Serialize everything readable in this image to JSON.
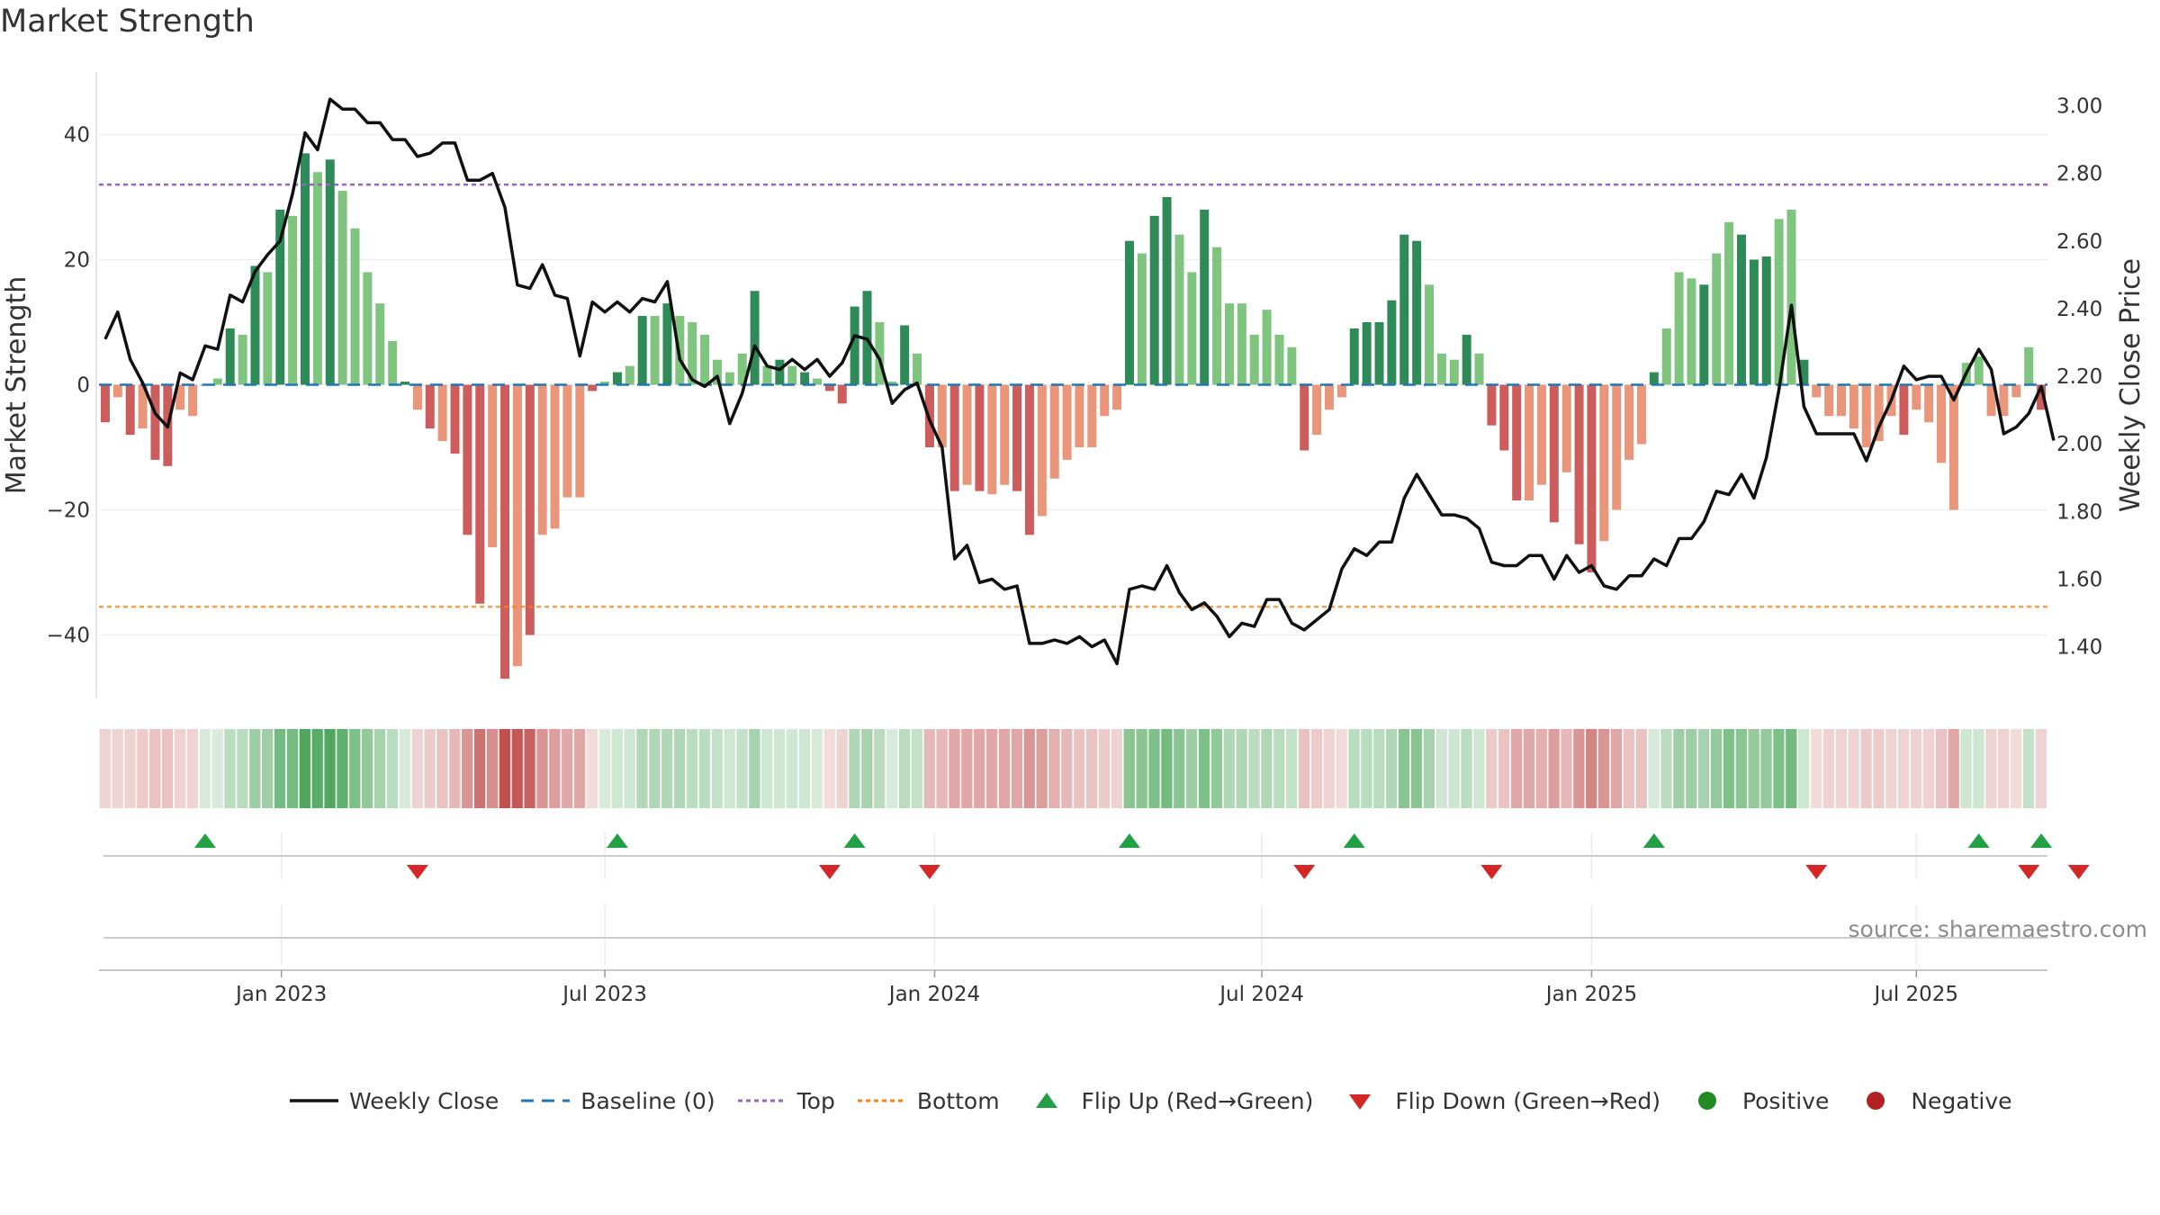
{
  "title": "Market Strength",
  "source": "source: sharemaestro.com",
  "colors": {
    "dark_green": "#2e8b57",
    "light_green": "#7fc47f",
    "dark_red": "#cd5c5c",
    "light_red": "#e9967a",
    "price_line": "#111111",
    "baseline": "#1f77b4",
    "top_line": "#9467bd",
    "bottom_line": "#ff7f0e",
    "flip_up": "#22a045",
    "flip_down": "#d62728",
    "positive": "#228b22",
    "negative": "#b22222"
  },
  "legend": [
    {
      "label": "Weekly Close",
      "kind": "line-solid",
      "color": "#111111"
    },
    {
      "label": "Baseline (0)",
      "kind": "line-dash",
      "color": "#1f77b4"
    },
    {
      "label": "Top",
      "kind": "line-dot",
      "color": "#9467bd"
    },
    {
      "label": "Bottom",
      "kind": "line-dot",
      "color": "#ff7f0e"
    },
    {
      "label": "Flip Up (Red→Green)",
      "kind": "tri-up",
      "color": "#22a045"
    },
    {
      "label": "Flip Down (Green→Red)",
      "kind": "tri-down",
      "color": "#d62728"
    },
    {
      "label": "Positive",
      "kind": "dot",
      "color": "#228b22"
    },
    {
      "label": "Negative",
      "kind": "dot",
      "color": "#b22222"
    }
  ],
  "chart_data": {
    "type": "bar",
    "ylabel": "Market Strength",
    "y2label": "Weekly Close Price",
    "ylim": [
      -50,
      50
    ],
    "y2lim": [
      1.25,
      3.1
    ],
    "yticks": [
      40,
      20,
      0,
      -20,
      -40
    ],
    "ytick_labels": [
      "40",
      "20",
      "0",
      "−20",
      "−40"
    ],
    "y2ticks": [
      3.0,
      2.8,
      2.6,
      2.4,
      2.2,
      2.0,
      1.8,
      1.6,
      1.4
    ],
    "y2tick_labels": [
      "3.00",
      "2.80",
      "2.60",
      "2.40",
      "2.20",
      "2.00",
      "1.80",
      "1.60",
      "1.40"
    ],
    "xticks": [
      {
        "label": "Jan 2023",
        "index": 14.1
      },
      {
        "label": "Jul 2023",
        "index": 40.0
      },
      {
        "label": "Jan 2024",
        "index": 66.4
      },
      {
        "label": "Jul 2024",
        "index": 92.6
      },
      {
        "label": "Jan 2025",
        "index": 119.0
      },
      {
        "label": "Jul 2025",
        "index": 145.0
      }
    ],
    "top_threshold": 32,
    "bottom_threshold": -35.5,
    "baseline": 0,
    "strength": [
      -6,
      -2,
      -8,
      -7,
      -12,
      -13,
      -4,
      -5,
      0,
      1,
      9,
      8,
      19,
      18,
      28,
      27,
      37,
      34,
      36,
      31,
      25,
      18,
      13,
      7,
      0.5,
      -4,
      -7,
      -9,
      -11,
      -24,
      -35,
      -26,
      -47,
      -45,
      -40,
      -24,
      -23,
      -18,
      -18,
      -1,
      0.5,
      2,
      3,
      11,
      11,
      13,
      11,
      10,
      8,
      4,
      2,
      5,
      15,
      3,
      4,
      3,
      2,
      1,
      -1,
      -3,
      12.5,
      15,
      10,
      0.5,
      9.5,
      5,
      -10,
      -10,
      -17,
      -16,
      -17,
      -17.5,
      -16,
      -17,
      -24,
      -21,
      -15,
      -12,
      -10,
      -10,
      -5,
      -4,
      23,
      21,
      27,
      30,
      24,
      18,
      28,
      22,
      13,
      13,
      8,
      12,
      8,
      6,
      -10.5,
      -8,
      -4,
      -2,
      9,
      10,
      10,
      13.5,
      24,
      23,
      16,
      5,
      4,
      8,
      5,
      -6.5,
      -10.5,
      -18.5,
      -18.5,
      -16,
      -22,
      -14,
      -25.5,
      -30,
      -25,
      -20,
      -12,
      -9.5,
      2,
      9,
      18,
      17,
      16,
      21,
      26,
      24,
      20,
      20.5,
      26.5,
      28,
      4,
      -2,
      -5,
      -5,
      -7,
      -10,
      -9,
      -5,
      -8,
      -4,
      -6,
      -12.5,
      -20,
      3.5,
      4.5,
      -5,
      -5,
      -2,
      6,
      -4
    ],
    "shade": [
      0,
      1,
      0,
      1,
      0,
      0,
      1,
      1,
      0,
      1,
      0,
      1,
      0,
      1,
      0,
      1,
      0,
      1,
      0,
      1,
      1,
      1,
      1,
      1,
      0,
      1,
      0,
      1,
      0,
      0,
      0,
      1,
      0,
      1,
      0,
      1,
      1,
      1,
      1,
      0,
      1,
      0,
      1,
      0,
      1,
      0,
      1,
      1,
      1,
      1,
      1,
      1,
      0,
      1,
      0,
      1,
      0,
      1,
      0,
      0,
      0,
      0,
      1,
      1,
      0,
      1,
      0,
      1,
      0,
      1,
      0,
      1,
      1,
      0,
      0,
      1,
      1,
      1,
      1,
      1,
      1,
      1,
      0,
      1,
      0,
      0,
      1,
      1,
      0,
      1,
      1,
      1,
      1,
      1,
      1,
      1,
      0,
      1,
      1,
      1,
      0,
      0,
      0,
      0,
      0,
      0,
      1,
      1,
      1,
      0,
      1,
      0,
      0,
      0,
      1,
      1,
      0,
      1,
      0,
      0,
      1,
      1,
      1,
      1,
      0,
      1,
      1,
      1,
      0,
      1,
      1,
      0,
      0,
      0,
      1,
      1,
      0,
      1,
      1,
      1,
      1,
      1,
      1,
      1,
      0,
      1,
      1,
      1,
      1,
      1,
      1,
      1,
      1,
      1,
      1,
      0,
      1,
      1,
      1,
      1
    ],
    "heat_intensity": [
      0.2,
      0.2,
      0.2,
      0.25,
      0.3,
      0.3,
      0.2,
      0.2,
      0.15,
      0.15,
      0.3,
      0.3,
      0.45,
      0.45,
      0.65,
      0.65,
      0.85,
      0.8,
      0.85,
      0.75,
      0.6,
      0.5,
      0.4,
      0.3,
      0.15,
      0.2,
      0.25,
      0.3,
      0.35,
      0.55,
      0.75,
      0.6,
      0.95,
      0.9,
      0.85,
      0.55,
      0.5,
      0.45,
      0.45,
      0.15,
      0.15,
      0.2,
      0.2,
      0.35,
      0.35,
      0.35,
      0.35,
      0.3,
      0.3,
      0.25,
      0.2,
      0.25,
      0.4,
      0.2,
      0.2,
      0.2,
      0.2,
      0.15,
      0.15,
      0.2,
      0.35,
      0.4,
      0.3,
      0.15,
      0.3,
      0.25,
      0.35,
      0.35,
      0.45,
      0.45,
      0.45,
      0.45,
      0.45,
      0.45,
      0.55,
      0.5,
      0.4,
      0.35,
      0.3,
      0.3,
      0.25,
      0.2,
      0.55,
      0.55,
      0.6,
      0.65,
      0.55,
      0.45,
      0.6,
      0.5,
      0.35,
      0.35,
      0.3,
      0.35,
      0.3,
      0.25,
      0.3,
      0.25,
      0.2,
      0.15,
      0.3,
      0.3,
      0.3,
      0.35,
      0.55,
      0.55,
      0.4,
      0.2,
      0.2,
      0.3,
      0.2,
      0.25,
      0.3,
      0.45,
      0.45,
      0.4,
      0.5,
      0.35,
      0.55,
      0.65,
      0.55,
      0.45,
      0.3,
      0.3,
      0.15,
      0.3,
      0.45,
      0.45,
      0.4,
      0.5,
      0.6,
      0.55,
      0.5,
      0.5,
      0.6,
      0.65,
      0.2,
      0.15,
      0.2,
      0.2,
      0.2,
      0.25,
      0.25,
      0.2,
      0.2,
      0.2,
      0.2,
      0.3,
      0.45,
      0.2,
      0.2,
      0.2,
      0.2,
      0.15,
      0.25,
      0.2
    ],
    "price": [
      2.31,
      2.39,
      2.25,
      2.18,
      2.09,
      2.05,
      2.21,
      2.19,
      2.29,
      2.28,
      2.44,
      2.42,
      2.51,
      2.56,
      2.6,
      2.74,
      2.92,
      2.87,
      3.02,
      2.99,
      2.99,
      2.95,
      2.95,
      2.9,
      2.9,
      2.85,
      2.86,
      2.89,
      2.89,
      2.78,
      2.78,
      2.8,
      2.7,
      2.47,
      2.46,
      2.53,
      2.44,
      2.43,
      2.26,
      2.42,
      2.39,
      2.42,
      2.39,
      2.43,
      2.42,
      2.48,
      2.25,
      2.19,
      2.17,
      2.2,
      2.06,
      2.15,
      2.29,
      2.23,
      2.22,
      2.25,
      2.22,
      2.25,
      2.2,
      2.24,
      2.32,
      2.31,
      2.25,
      2.12,
      2.16,
      2.18,
      2.07,
      1.99,
      1.66,
      1.7,
      1.59,
      1.6,
      1.57,
      1.58,
      1.41,
      1.41,
      1.42,
      1.41,
      1.43,
      1.4,
      1.42,
      1.35,
      1.57,
      1.58,
      1.57,
      1.64,
      1.56,
      1.51,
      1.53,
      1.49,
      1.43,
      1.47,
      1.46,
      1.54,
      1.54,
      1.47,
      1.45,
      1.48,
      1.51,
      1.63,
      1.69,
      1.67,
      1.71,
      1.71,
      1.84,
      1.91,
      1.85,
      1.79,
      1.79,
      1.78,
      1.75,
      1.65,
      1.64,
      1.64,
      1.67,
      1.67,
      1.6,
      1.67,
      1.62,
      1.64,
      1.58,
      1.57,
      1.61,
      1.61,
      1.66,
      1.64,
      1.72,
      1.72,
      1.77,
      1.86,
      1.85,
      1.91,
      1.84,
      1.96,
      2.16,
      2.41,
      2.11,
      2.03,
      2.03,
      2.03,
      2.03,
      1.95,
      2.05,
      2.13,
      2.23,
      2.19,
      2.2,
      2.2,
      2.13,
      2.21,
      2.28,
      2.22,
      2.03,
      2.05,
      2.09,
      2.17,
      2.01
    ],
    "flip_up": [
      8,
      41,
      60,
      82,
      100,
      124,
      150,
      155
    ],
    "flip_down": [
      25,
      58,
      66,
      96,
      111,
      137,
      154,
      158
    ]
  }
}
